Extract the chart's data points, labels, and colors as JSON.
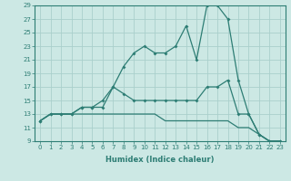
{
  "xlabel": "Humidex (Indice chaleur)",
  "x": [
    0,
    1,
    2,
    3,
    4,
    5,
    6,
    7,
    8,
    9,
    10,
    11,
    12,
    13,
    14,
    15,
    16,
    17,
    18,
    19,
    20,
    21,
    22,
    23
  ],
  "line_top": [
    12,
    13,
    13,
    13,
    14,
    14,
    15,
    17,
    20,
    22,
    23,
    22,
    22,
    23,
    26,
    21,
    29,
    29,
    27,
    18,
    13,
    10,
    9,
    9
  ],
  "line_mid": [
    12,
    13,
    13,
    13,
    14,
    14,
    14,
    17,
    16,
    15,
    15,
    15,
    15,
    15,
    15,
    15,
    17,
    17,
    18,
    13,
    13,
    10,
    9,
    9
  ],
  "line_bot": [
    12,
    13,
    13,
    13,
    13,
    13,
    13,
    13,
    13,
    13,
    13,
    13,
    12,
    12,
    12,
    12,
    12,
    12,
    12,
    11,
    11,
    10,
    9,
    9
  ],
  "color": "#2d7d74",
  "bg_color": "#cce8e4",
  "grid_color": "#aacfcc",
  "ylim_min": 9,
  "ylim_max": 29,
  "xlim_min": 0,
  "xlim_max": 23,
  "yticks": [
    9,
    11,
    13,
    15,
    17,
    19,
    21,
    23,
    25,
    27,
    29
  ],
  "xticks": [
    0,
    1,
    2,
    3,
    4,
    5,
    6,
    7,
    8,
    9,
    10,
    11,
    12,
    13,
    14,
    15,
    16,
    17,
    18,
    19,
    20,
    21,
    22,
    23
  ],
  "tick_fontsize": 5,
  "xlabel_fontsize": 6
}
